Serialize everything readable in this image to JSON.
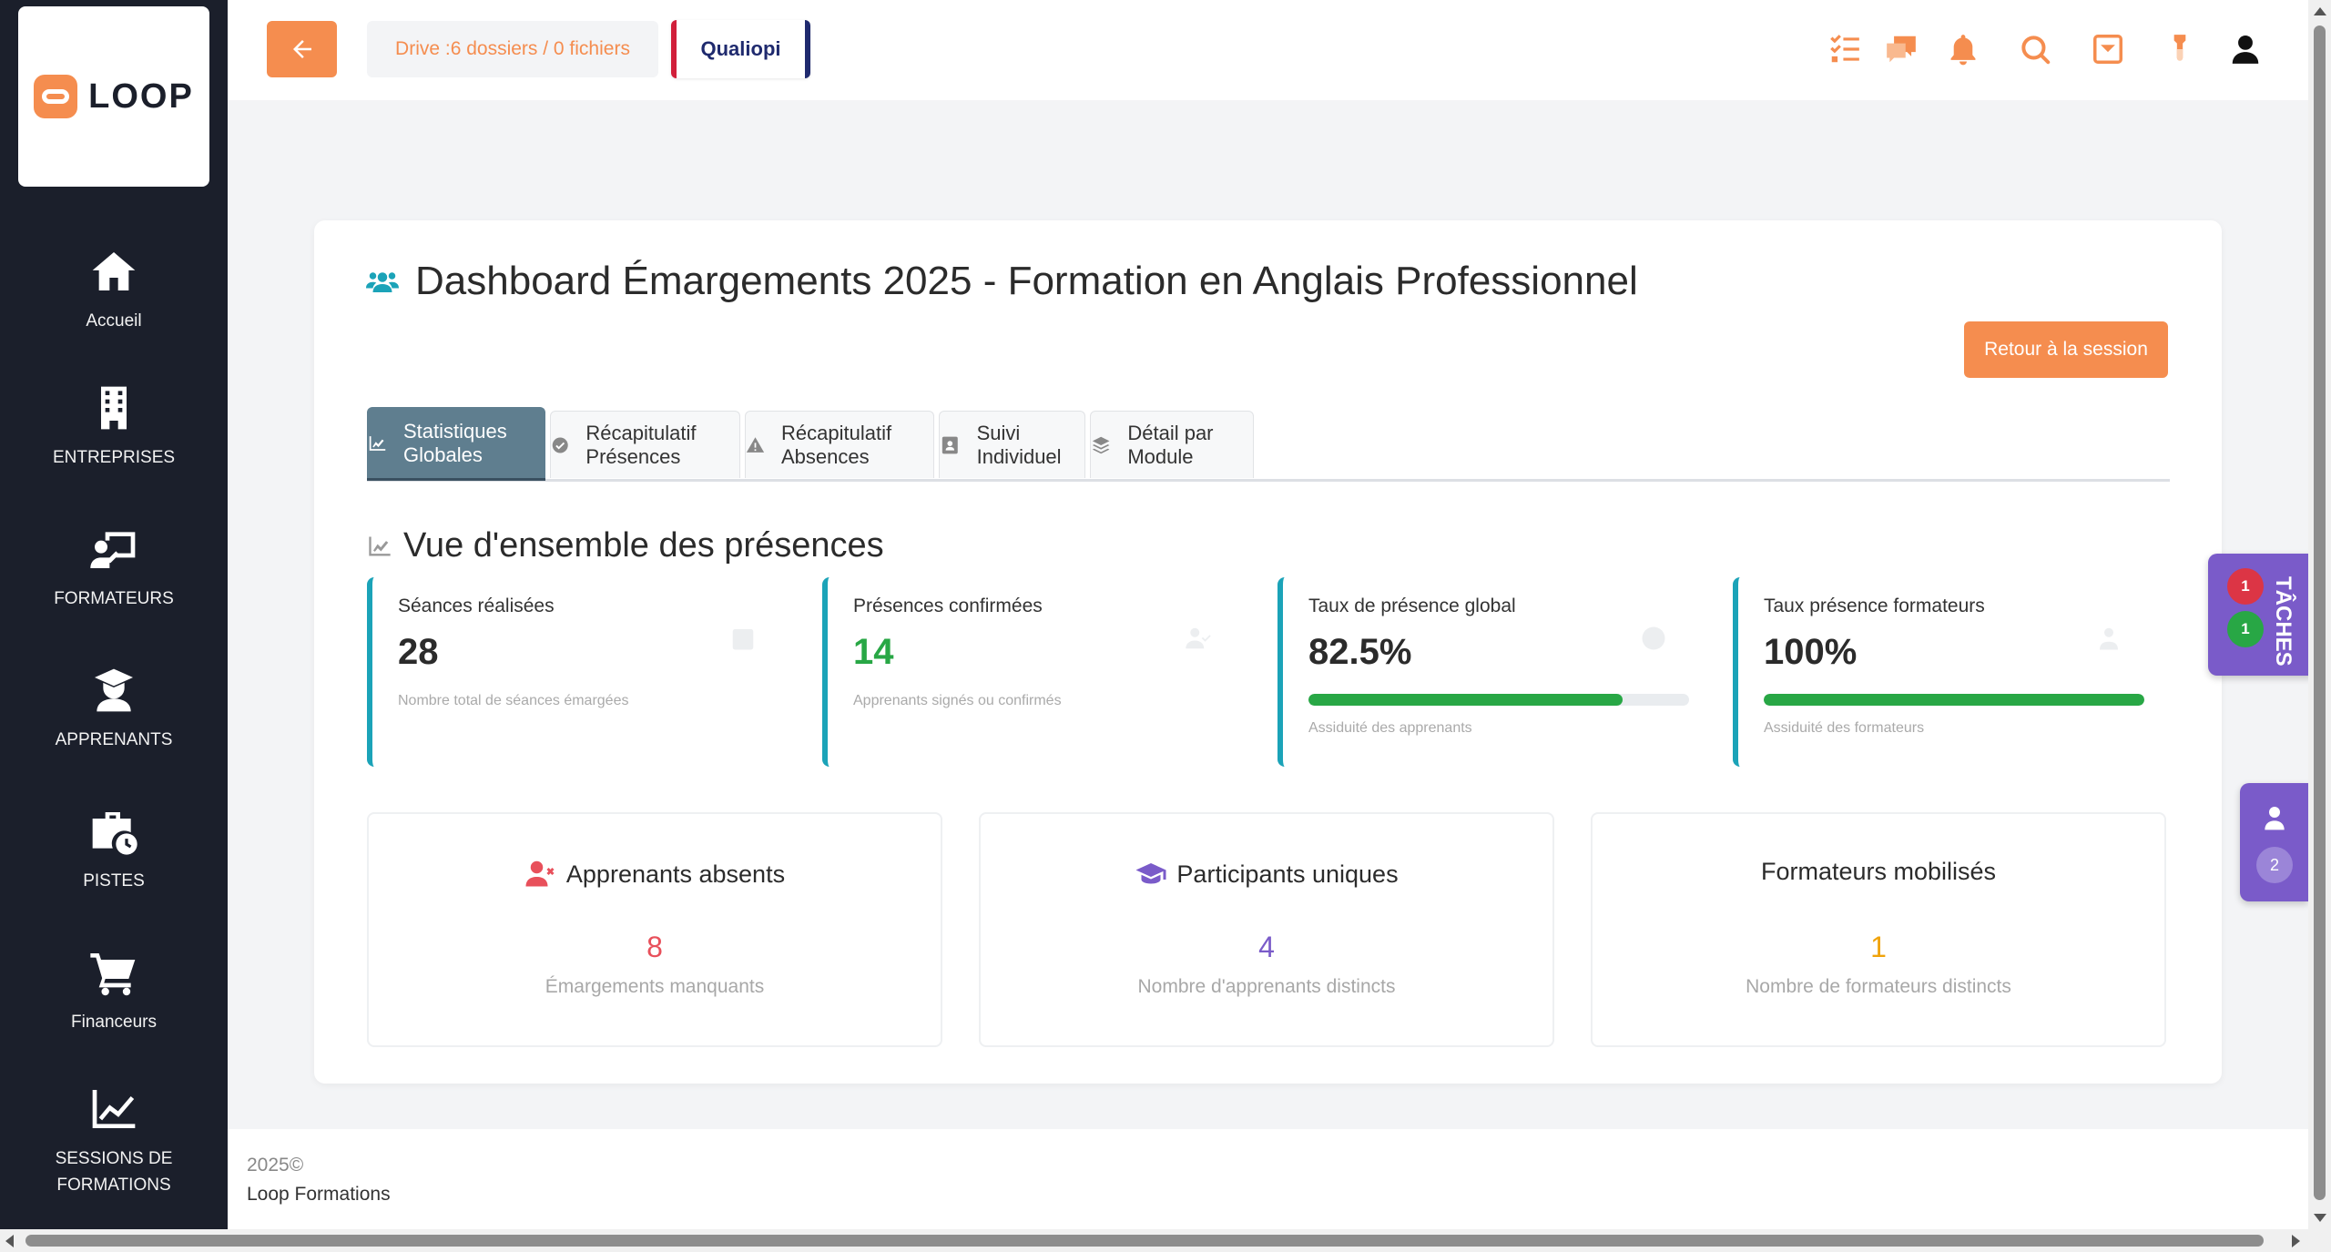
{
  "sidebar": {
    "logo_text": "LOOP",
    "items": [
      {
        "label": "Accueil",
        "icon": "home-icon"
      },
      {
        "label": "ENTREPRISES",
        "icon": "building-icon"
      },
      {
        "label": "FORMATEURS",
        "icon": "chalkboard-teacher-icon"
      },
      {
        "label": "APPRENANTS",
        "icon": "graduate-icon"
      },
      {
        "label": "PISTES",
        "icon": "briefcase-clock-icon"
      },
      {
        "label": "Financeurs",
        "icon": "cart-icon"
      },
      {
        "label": "SESSIONS DE FORMATIONS",
        "icon": "chart-line-icon"
      }
    ]
  },
  "topbar": {
    "drive_label": "Drive :6 dossiers / 0 fichiers",
    "qualiopi_label": "Qualiopi",
    "icons": [
      "tasks-icon",
      "chat-icon",
      "bell-icon",
      "search-icon",
      "inbox-icon",
      "tip-icon",
      "user-icon"
    ]
  },
  "page": {
    "title": "Dashboard Émargements 2025 - Formation en Anglais Professionnel",
    "retour_label": "Retour à la session"
  },
  "tabs": [
    {
      "label": "Statistiques Globales",
      "icon": "chart-area-icon",
      "active": true
    },
    {
      "label": "Récapitulatif Présences",
      "icon": "check-circle-icon",
      "active": false
    },
    {
      "label": "Récapitulatif Absences",
      "icon": "warning-icon",
      "active": false
    },
    {
      "label": "Suivi Individuel",
      "icon": "contact-card-icon",
      "active": false
    },
    {
      "label": "Détail par Module",
      "icon": "layers-icon",
      "active": false
    }
  ],
  "overview": {
    "title": "Vue d'ensemble des présences",
    "stats": [
      {
        "title": "Séances réalisées",
        "value": "28",
        "sub": "Nombre total de séances émargées"
      },
      {
        "title": "Présences confirmées",
        "value": "14",
        "sub": "Apprenants signés ou confirmés"
      },
      {
        "title": "Taux de présence global",
        "value": "82.5%",
        "sub": "Assiduité des apprenants",
        "progress": 82.5
      },
      {
        "title": "Taux présence formateurs",
        "value": "100%",
        "sub": "Assiduité des formateurs",
        "progress": 100
      }
    ]
  },
  "summary": [
    {
      "title": "Apprenants absents",
      "value": "8",
      "sub": "Émargements manquants",
      "color": "#e8505b"
    },
    {
      "title": "Participants uniques",
      "value": "4",
      "sub": "Nombre d'apprenants distincts",
      "color": "#7a5bc9"
    },
    {
      "title": "Formateurs mobilisés",
      "value": "1",
      "sub": "Nombre de formateurs distincts",
      "color": "#f0a30a"
    }
  ],
  "footer": {
    "year": "2025©",
    "company": "Loop Formations"
  },
  "widgets": {
    "taches_label": "TÂCHES",
    "taches_red_count": "1",
    "taches_green_count": "1",
    "user_count": "2"
  },
  "colors": {
    "accent": "#f58d4f",
    "sidebar": "#1b1f2b",
    "teal": "#1ba3b8",
    "purple": "#7a5bc9",
    "tab_active": "#5f7e8f"
  }
}
